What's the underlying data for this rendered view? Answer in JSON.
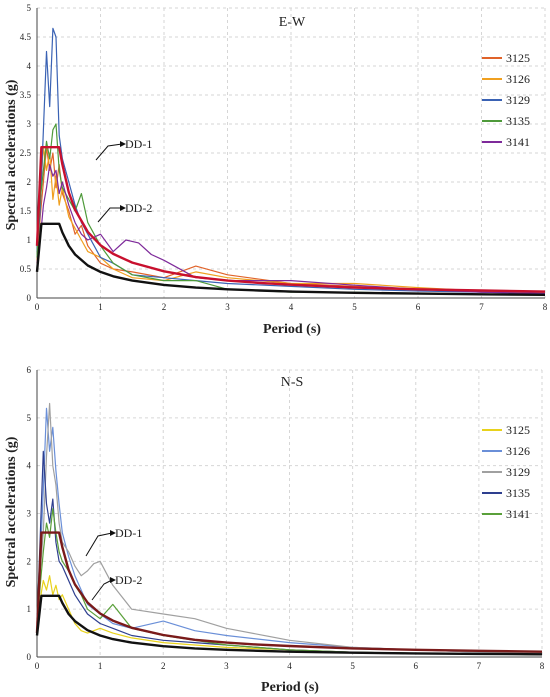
{
  "chart_data": [
    {
      "type": "line",
      "title": "E-W",
      "xlabel": "Period (s)",
      "ylabel": "Spectral accelerations (g)",
      "xlim": [
        0,
        8
      ],
      "ylim": [
        0,
        5
      ],
      "xticks": [
        0,
        1,
        2,
        3,
        4,
        5,
        6,
        7,
        8
      ],
      "yticks": [
        0,
        0.5,
        1,
        1.5,
        2,
        2.5,
        3,
        3.5,
        4,
        4.5,
        5
      ],
      "ytick_labels": [
        "0",
        "0.5",
        "1",
        "1.5",
        "2",
        "2.5",
        "3",
        "3.5",
        "4",
        "4.5",
        "5"
      ],
      "grid": true,
      "legend": "right",
      "series": [
        {
          "name": "3125",
          "color": "#e0632a",
          "x": [
            0,
            0.05,
            0.1,
            0.15,
            0.2,
            0.25,
            0.3,
            0.35,
            0.4,
            0.5,
            0.6,
            0.7,
            0.8,
            1,
            1.2,
            1.5,
            2,
            2.5,
            3,
            4,
            5,
            6,
            7,
            8
          ],
          "y": [
            0.6,
            1.4,
            2.0,
            2.6,
            2.2,
            2.5,
            1.9,
            2.3,
            1.8,
            1.5,
            1.1,
            1.25,
            0.9,
            0.6,
            0.5,
            0.45,
            0.35,
            0.55,
            0.4,
            0.25,
            0.2,
            0.15,
            0.1,
            0.08
          ]
        },
        {
          "name": "3126",
          "color": "#f0a020",
          "x": [
            0,
            0.05,
            0.1,
            0.15,
            0.2,
            0.25,
            0.3,
            0.35,
            0.4,
            0.5,
            0.6,
            0.7,
            0.8,
            1,
            1.2,
            1.5,
            2,
            2.5,
            3,
            4,
            5,
            6,
            7,
            8
          ],
          "y": [
            0.5,
            1.8,
            2.6,
            2.2,
            2.5,
            1.7,
            2.1,
            1.6,
            1.9,
            1.4,
            1.2,
            1.0,
            0.8,
            0.7,
            0.5,
            0.35,
            0.3,
            0.45,
            0.35,
            0.25,
            0.25,
            0.18,
            0.12,
            0.08
          ]
        },
        {
          "name": "3129",
          "color": "#3a62b4",
          "x": [
            0,
            0.05,
            0.1,
            0.15,
            0.2,
            0.25,
            0.3,
            0.35,
            0.4,
            0.5,
            0.6,
            0.7,
            0.8,
            1,
            1.2,
            1.5,
            2,
            2.5,
            3,
            4,
            5,
            6,
            7,
            8
          ],
          "y": [
            0.8,
            1.5,
            2.9,
            4.25,
            3.3,
            4.65,
            4.5,
            2.8,
            2.4,
            2.0,
            1.6,
            1.3,
            1.1,
            0.7,
            0.6,
            0.4,
            0.35,
            0.3,
            0.25,
            0.2,
            0.15,
            0.12,
            0.1,
            0.07
          ]
        },
        {
          "name": "3135",
          "color": "#4e9a3a",
          "x": [
            0,
            0.05,
            0.1,
            0.15,
            0.2,
            0.25,
            0.3,
            0.35,
            0.4,
            0.5,
            0.6,
            0.7,
            0.8,
            1,
            1.2,
            1.5,
            2,
            2.5,
            3,
            4,
            5,
            6,
            7,
            8
          ],
          "y": [
            0.7,
            1.7,
            2.2,
            2.7,
            2.4,
            2.9,
            3.0,
            2.2,
            1.9,
            1.7,
            1.5,
            1.8,
            1.3,
            0.9,
            0.6,
            0.4,
            0.3,
            0.3,
            0.15,
            0.1,
            0.1,
            0.08,
            0.06,
            0.05
          ]
        },
        {
          "name": "3141",
          "color": "#7e2a9a",
          "x": [
            0,
            0.05,
            0.1,
            0.15,
            0.2,
            0.25,
            0.3,
            0.35,
            0.4,
            0.5,
            0.6,
            0.7,
            0.8,
            1,
            1.2,
            1.4,
            1.6,
            1.8,
            2,
            2.5,
            3,
            4,
            5,
            6,
            7,
            8
          ],
          "y": [
            0.6,
            1.0,
            1.6,
            1.9,
            2.3,
            2.1,
            2.2,
            1.8,
            2.0,
            1.6,
            1.3,
            1.1,
            1.0,
            1.1,
            0.8,
            1.0,
            0.95,
            0.75,
            0.65,
            0.35,
            0.3,
            0.3,
            0.22,
            0.15,
            0.1,
            0.08
          ]
        },
        {
          "name": "DD-1",
          "color": "#c8102e",
          "x": [
            0,
            0.07,
            0.35,
            0.4,
            0.5,
            0.6,
            0.8,
            1,
            1.2,
            1.5,
            2,
            2.5,
            3,
            3.5,
            4,
            5,
            6,
            7,
            8
          ],
          "y": [
            0.9,
            2.6,
            2.6,
            2.3,
            1.82,
            1.52,
            1.14,
            0.91,
            0.76,
            0.61,
            0.46,
            0.36,
            0.3,
            0.26,
            0.23,
            0.18,
            0.15,
            0.13,
            0.11
          ]
        },
        {
          "name": "DD-2",
          "color": "#111111",
          "x": [
            0,
            0.07,
            0.35,
            0.4,
            0.5,
            0.6,
            0.8,
            1,
            1.2,
            1.5,
            2,
            2.5,
            3,
            3.5,
            4,
            5,
            6,
            7,
            8
          ],
          "y": [
            0.45,
            1.28,
            1.28,
            1.13,
            0.9,
            0.75,
            0.56,
            0.45,
            0.375,
            0.3,
            0.225,
            0.18,
            0.15,
            0.13,
            0.11,
            0.09,
            0.075,
            0.064,
            0.056
          ]
        }
      ],
      "annotations": [
        {
          "text": "DD-1",
          "x": 1.5,
          "y": 2.65
        },
        {
          "text": "DD-2",
          "x": 1.5,
          "y": 1.55
        }
      ]
    },
    {
      "type": "line",
      "title": "N-S",
      "xlabel": "Period (s)",
      "ylabel": "Spectral accelerations (g)",
      "xlim": [
        0,
        8
      ],
      "ylim": [
        0,
        6
      ],
      "xticks": [
        0,
        1,
        2,
        3,
        4,
        5,
        6,
        7,
        8
      ],
      "yticks": [
        0,
        1,
        2,
        3,
        4,
        5,
        6
      ],
      "ytick_labels": [
        "0",
        "1",
        "2",
        "3",
        "4",
        "5",
        "6"
      ],
      "grid": true,
      "legend": "right",
      "series": [
        {
          "name": "3125",
          "color": "#e8d21c",
          "x": [
            0,
            0.05,
            0.1,
            0.15,
            0.2,
            0.25,
            0.3,
            0.35,
            0.4,
            0.5,
            0.6,
            0.7,
            0.8,
            1,
            1.2,
            1.5,
            2,
            2.5,
            3,
            4,
            5,
            6,
            7,
            8
          ],
          "y": [
            0.6,
            1.2,
            1.6,
            1.4,
            1.7,
            1.3,
            1.5,
            1.2,
            1.3,
            1.0,
            0.7,
            0.55,
            0.5,
            0.6,
            0.5,
            0.4,
            0.3,
            0.25,
            0.2,
            0.15,
            0.1,
            0.08,
            0.06,
            0.05
          ]
        },
        {
          "name": "3126",
          "color": "#6a8fd8",
          "x": [
            0,
            0.05,
            0.1,
            0.15,
            0.2,
            0.25,
            0.3,
            0.35,
            0.4,
            0.5,
            0.6,
            0.7,
            0.8,
            1,
            1.2,
            1.5,
            2,
            2.5,
            3,
            4,
            5,
            6,
            7,
            8
          ],
          "y": [
            0.8,
            2.0,
            3.5,
            5.2,
            4.3,
            4.8,
            3.9,
            3.2,
            2.6,
            2.1,
            1.7,
            1.4,
            1.1,
            0.9,
            0.7,
            0.6,
            0.75,
            0.55,
            0.45,
            0.3,
            0.2,
            0.15,
            0.1,
            0.08
          ]
        },
        {
          "name": "3129",
          "color": "#a0a0a0",
          "x": [
            0,
            0.05,
            0.1,
            0.15,
            0.2,
            0.25,
            0.3,
            0.35,
            0.4,
            0.5,
            0.6,
            0.7,
            0.8,
            0.9,
            1,
            1.2,
            1.5,
            2,
            2.5,
            3,
            4,
            5,
            6,
            7,
            8
          ],
          "y": [
            0.9,
            1.8,
            2.6,
            4.2,
            5.3,
            4.0,
            3.6,
            2.8,
            2.4,
            2.2,
            1.9,
            1.7,
            1.8,
            1.95,
            2.0,
            1.5,
            1.0,
            0.9,
            0.8,
            0.6,
            0.35,
            0.2,
            0.15,
            0.1,
            0.08
          ]
        },
        {
          "name": "3135",
          "color": "#2e3f8f",
          "x": [
            0,
            0.05,
            0.1,
            0.15,
            0.2,
            0.25,
            0.3,
            0.35,
            0.4,
            0.5,
            0.6,
            0.7,
            0.8,
            1,
            1.2,
            1.5,
            2,
            2.5,
            3,
            4,
            5,
            6,
            7,
            8
          ],
          "y": [
            0.7,
            2.5,
            4.3,
            3.2,
            2.8,
            3.3,
            2.4,
            2.0,
            1.9,
            1.6,
            1.3,
            1.1,
            0.9,
            0.7,
            0.6,
            0.45,
            0.35,
            0.3,
            0.25,
            0.15,
            0.1,
            0.08,
            0.06,
            0.05
          ]
        },
        {
          "name": "3141",
          "color": "#5aa03a",
          "x": [
            0,
            0.05,
            0.1,
            0.15,
            0.2,
            0.25,
            0.3,
            0.35,
            0.4,
            0.5,
            0.6,
            0.7,
            0.8,
            1,
            1.2,
            1.5,
            2,
            2.5,
            3,
            4,
            5,
            6,
            7,
            8
          ],
          "y": [
            0.6,
            1.5,
            2.2,
            2.8,
            2.5,
            3.1,
            2.6,
            2.2,
            2.0,
            1.8,
            1.5,
            1.3,
            1.0,
            0.8,
            1.1,
            0.6,
            0.45,
            0.35,
            0.25,
            0.15,
            0.1,
            0.08,
            0.06,
            0.05
          ]
        },
        {
          "name": "DD-1",
          "color": "#7a1a1a",
          "x": [
            0,
            0.07,
            0.35,
            0.4,
            0.5,
            0.6,
            0.8,
            1,
            1.2,
            1.5,
            2,
            2.5,
            3,
            3.5,
            4,
            5,
            6,
            7,
            8
          ],
          "y": [
            0.5,
            2.6,
            2.6,
            2.3,
            1.82,
            1.52,
            1.14,
            0.91,
            0.76,
            0.61,
            0.46,
            0.36,
            0.3,
            0.26,
            0.23,
            0.18,
            0.15,
            0.13,
            0.11
          ]
        },
        {
          "name": "DD-2",
          "color": "#111111",
          "x": [
            0,
            0.07,
            0.35,
            0.4,
            0.5,
            0.6,
            0.8,
            1,
            1.2,
            1.5,
            2,
            2.5,
            3,
            3.5,
            4,
            5,
            6,
            7,
            8
          ],
          "y": [
            0.45,
            1.28,
            1.28,
            1.13,
            0.9,
            0.75,
            0.56,
            0.45,
            0.375,
            0.3,
            0.225,
            0.18,
            0.15,
            0.13,
            0.11,
            0.09,
            0.075,
            0.064,
            0.056
          ]
        }
      ],
      "annotations": [
        {
          "text": "DD-1",
          "x": 1.3,
          "y": 2.9
        },
        {
          "text": "DD-2",
          "x": 1.3,
          "y": 1.85
        }
      ]
    }
  ]
}
